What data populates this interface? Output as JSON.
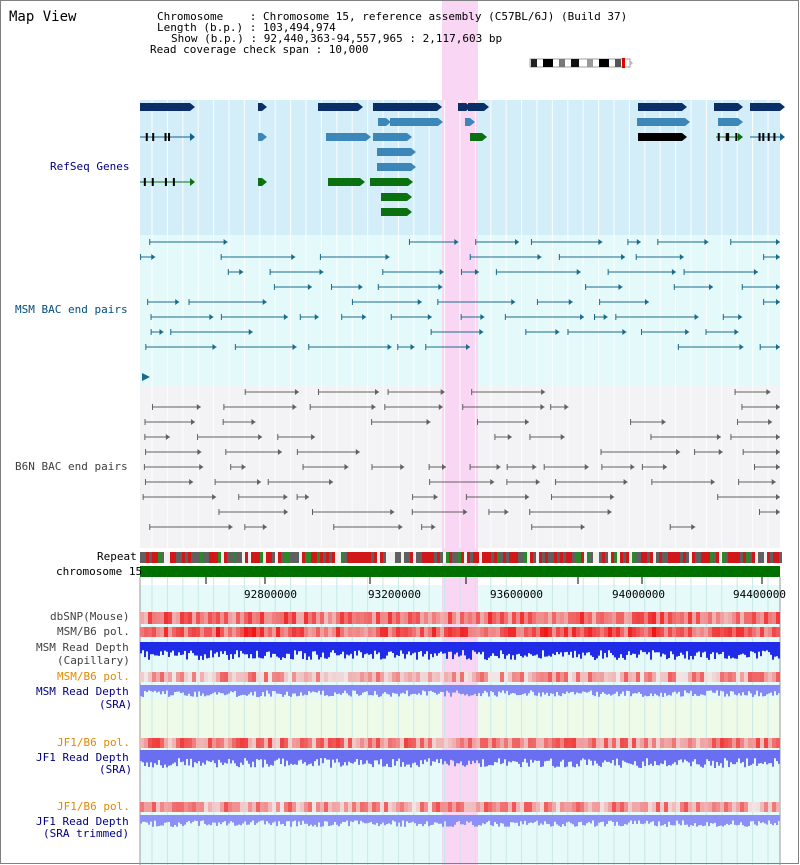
{
  "header": {
    "title": "Map View",
    "chromosome_line": "Chromosome    : Chromosome 15, reference assembly (C57BL/6J) (Build 37)",
    "length_line": "Length (b.p.) : 103,494,974",
    "show_line": "Show (b.p.) : 92,440,363-94,557,965 : 2,117,603 bp",
    "coverage_line": "Read coverage check span : 10,000"
  },
  "tracks": {
    "refseq": "RefSeq Genes",
    "msm_bac": "MSM BAC end pairs",
    "b6n_bac": "B6N BAC end pairs",
    "repeat": "Repeat",
    "chromosome": "chromosome 15",
    "dbsnp": "dbSNP(Mouse)",
    "msm_b6_pol_cap": "MSM/B6 pol.",
    "msm_depth_cap_1": "MSM Read Depth",
    "msm_depth_cap_2": "(Capillary)",
    "msm_b6_pol_sra": "MSM/B6 pol.",
    "msm_depth_sra_1": "MSM Read Depth",
    "msm_depth_sra_2": "(SRA)",
    "jf1_b6_pol": "JF1/B6 pol.",
    "jf1_depth_1": "JF1 Read Depth",
    "jf1_depth_2": "(SRA)",
    "jf1_b6_pol_trim": "JF1/B6 pol.",
    "jf1_trim_1": "JF1 Read Depth",
    "jf1_trim_2": "(SRA trimmed)"
  },
  "axis": {
    "ticks": [
      "92800000",
      "93200000",
      "93600000",
      "94000000",
      "94400000"
    ]
  },
  "colors": {
    "refseq_bg": "#d4eef9",
    "msm_bg": "#e4fafa",
    "b6n_bg": "#f3f3f5",
    "highlight": "#f8d6f4",
    "depth_blue": "#1f2be6",
    "depth_light": "#7c80f5",
    "chrom_green": "#007000"
  }
}
